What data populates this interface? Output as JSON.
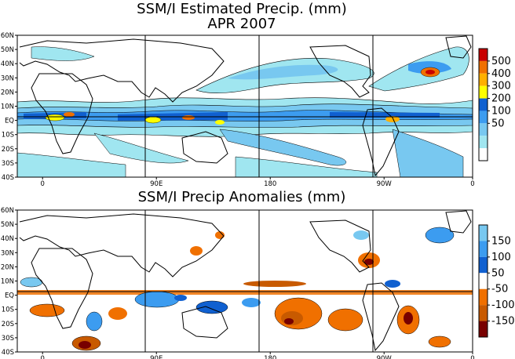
{
  "top_map": {
    "title_line1": "SSM/I Estimated Precip. (mm)",
    "title_line2": "APR 2007",
    "y_ticks": [
      "60N",
      "50N",
      "40N",
      "30N",
      "20N",
      "10N",
      "EQ",
      "10S",
      "20S",
      "30S",
      "40S"
    ],
    "x_ticks": [
      "0",
      "90E",
      "180",
      "90W",
      "0"
    ],
    "legend_labels": [
      "500",
      "400",
      "300",
      "200",
      "100",
      "50"
    ],
    "legend_colors": [
      "#c80000",
      "#f07000",
      "#ffb000",
      "#ffff00",
      "#1060d0",
      "#3c9cf0",
      "#78c8f0",
      "#a0e6f0",
      "#ffffff"
    ]
  },
  "bottom_map": {
    "title": "SSM/I Precip Anomalies (mm)",
    "y_ticks": [
      "60N",
      "50N",
      "40N",
      "30N",
      "20N",
      "10N",
      "EQ",
      "10S",
      "20S",
      "30S",
      "40S"
    ],
    "x_ticks": [
      "0",
      "90E",
      "180",
      "90W",
      "0"
    ],
    "legend_labels": [
      "150",
      "100",
      "50",
      "-50",
      "-100",
      "-150"
    ],
    "legend_colors": [
      "#78c8f0",
      "#3c9cf0",
      "#1060d0",
      "#ffffff",
      "#f07000",
      "#c85a00",
      "#780000"
    ]
  }
}
